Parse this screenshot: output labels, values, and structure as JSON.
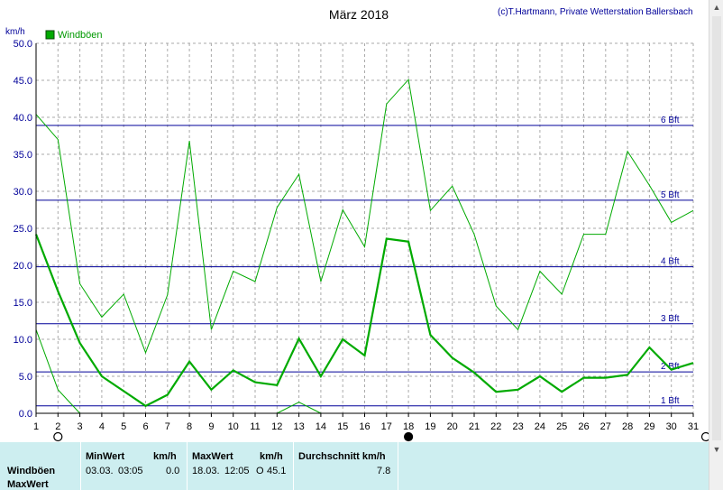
{
  "chart_data": {
    "type": "line",
    "title": "März 2018",
    "credit": "(c)T.Hartmann, Private Wetterstation Ballersbach",
    "ylabel": "km/h",
    "legend": "Windböen",
    "x": [
      1,
      2,
      3,
      4,
      5,
      6,
      7,
      8,
      9,
      10,
      11,
      12,
      13,
      14,
      15,
      16,
      17,
      18,
      19,
      20,
      21,
      22,
      23,
      24,
      25,
      26,
      27,
      28,
      29,
      30,
      31
    ],
    "xlim": [
      1,
      31
    ],
    "ylim": [
      0,
      50
    ],
    "ytick_labels": [
      "0.0",
      "5.0",
      "10.0",
      "15.0",
      "20.0",
      "25.0",
      "30.0",
      "35.0",
      "40.0",
      "45.0",
      "50.0"
    ],
    "grid": true,
    "series": [
      {
        "name": "Windböen",
        "role": "average",
        "values": [
          24.2,
          16.5,
          9.5,
          5.0,
          3.0,
          1.0,
          2.5,
          7.0,
          3.2,
          5.8,
          4.2,
          3.8,
          10.1,
          5.0,
          10.0,
          7.8,
          23.6,
          23.2,
          10.6,
          7.5,
          5.5,
          2.9,
          3.2,
          5.0,
          2.9,
          4.8,
          4.8,
          5.2,
          8.9,
          5.9,
          6.8
        ]
      },
      {
        "role": "max",
        "values": [
          40.4,
          37.0,
          17.5,
          13.0,
          16.1,
          8.2,
          16.0,
          36.8,
          11.3,
          19.2,
          17.8,
          27.8,
          32.3,
          17.8,
          27.5,
          22.5,
          41.8,
          45.1,
          27.4,
          30.7,
          24.2,
          14.5,
          11.3,
          19.2,
          16.1,
          24.2,
          24.2,
          35.4,
          30.8,
          25.8,
          27.4
        ]
      },
      {
        "role": "min",
        "segments": [
          {
            "x": [
              1,
              2,
              3
            ],
            "values": [
              11.3,
              3.2,
              0.0
            ]
          },
          {
            "x": [
              12,
              13,
              14
            ],
            "values": [
              0.0,
              1.5,
              0.0
            ]
          }
        ]
      }
    ],
    "beaufort_lines": [
      {
        "label": "1 Bft",
        "value": 1.0
      },
      {
        "label": "2 Bft",
        "value": 5.6
      },
      {
        "label": "3 Bft",
        "value": 12.1
      },
      {
        "label": "4 Bft",
        "value": 19.8
      },
      {
        "label": "5 Bft",
        "value": 28.8
      },
      {
        "label": "6 Bft",
        "value": 38.9
      }
    ],
    "markers": [
      {
        "day": 2,
        "symbol": "○"
      },
      {
        "day": 18,
        "symbol": "●"
      },
      {
        "day": 31,
        "symbol": "○"
      }
    ],
    "colors": {
      "line": "#00aa00",
      "grid": "#aaaaaa",
      "beaufort": "#000099",
      "table_bg": "#cdeef0"
    }
  },
  "table": {
    "row_label_1": "Windböen",
    "row_label_2": "MaxWert",
    "min_header": "MinWert",
    "min_unit": "km/h",
    "min_date": "03.03.",
    "min_time": "03:05",
    "min_value": "0.0",
    "max_header": "MaxWert",
    "max_unit": "km/h",
    "max_date": "18.03.",
    "max_time": "12:05",
    "max_dir": "O",
    "max_value": "45.1",
    "avg_header": "Durchschnitt km/h",
    "avg_value": "7.8"
  }
}
